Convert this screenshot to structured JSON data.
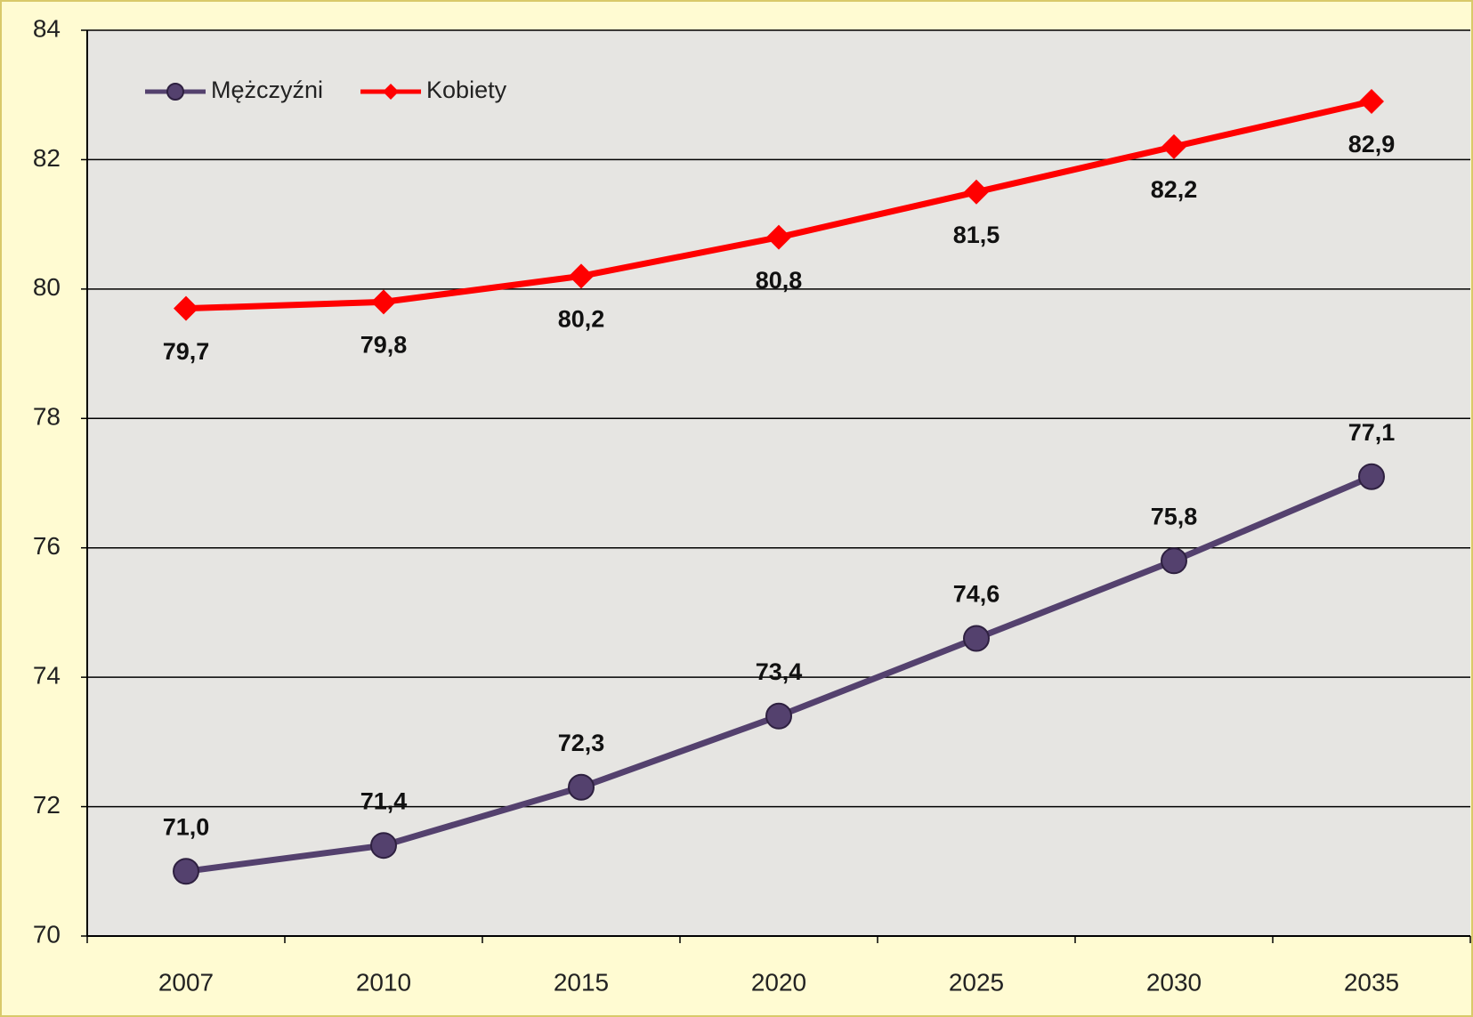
{
  "chart_data": {
    "type": "line",
    "categories": [
      "2007",
      "2010",
      "2015",
      "2020",
      "2025",
      "2030",
      "2035"
    ],
    "series": [
      {
        "name": "Mężczyźni",
        "color": "#54416e",
        "marker": "circle",
        "values": [
          71.0,
          71.4,
          72.3,
          73.4,
          74.6,
          75.8,
          77.1
        ],
        "value_labels": [
          "71,0",
          "71,4",
          "72,3",
          "73,4",
          "74,6",
          "75,8",
          "77,1"
        ]
      },
      {
        "name": "Kobiety",
        "color": "#ff0000",
        "marker": "diamond",
        "values": [
          79.7,
          79.8,
          80.2,
          80.8,
          81.5,
          82.2,
          82.9
        ],
        "value_labels": [
          "79,7",
          "79,8",
          "80,2",
          "80,8",
          "81,5",
          "82,2",
          "82,9"
        ]
      }
    ],
    "ylim": [
      70,
      84
    ],
    "yticks": [
      70,
      72,
      74,
      76,
      78,
      80,
      82,
      84
    ],
    "grid": true,
    "legend": "upper left"
  }
}
